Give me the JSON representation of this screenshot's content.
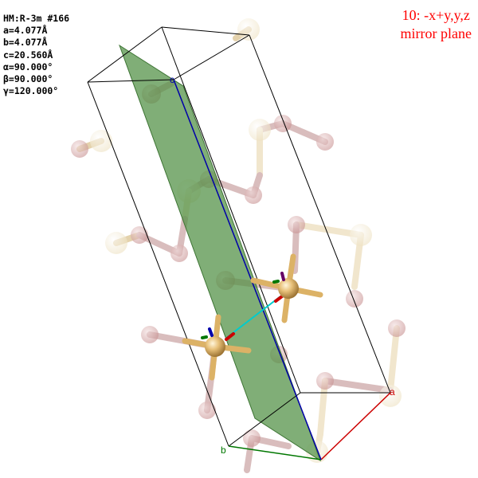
{
  "cell_info": {
    "space_group": "HM:R-3m #166",
    "a": "a=4.077Å",
    "b": "b=4.077Å",
    "c": "c=20.560Å",
    "alpha": "α=90.000°",
    "beta": "β=90.000°",
    "gamma": "γ=120.000°"
  },
  "symmetry_operation": {
    "line1": "10: -x+y,y,z",
    "line2": "mirror plane"
  },
  "axes": {
    "a_label": "a",
    "b_label": "b",
    "c_label": "c"
  },
  "colors": {
    "mirror_plane": "#4f8f43",
    "axis_a": "#cc0000",
    "axis_b": "#007700",
    "axis_c": "#0000aa",
    "label_red": "#ff0000",
    "atom_gold": "#e8c17a",
    "atom_ghost_red": "#d9a4a4",
    "bond_connector": "#00cccc"
  }
}
